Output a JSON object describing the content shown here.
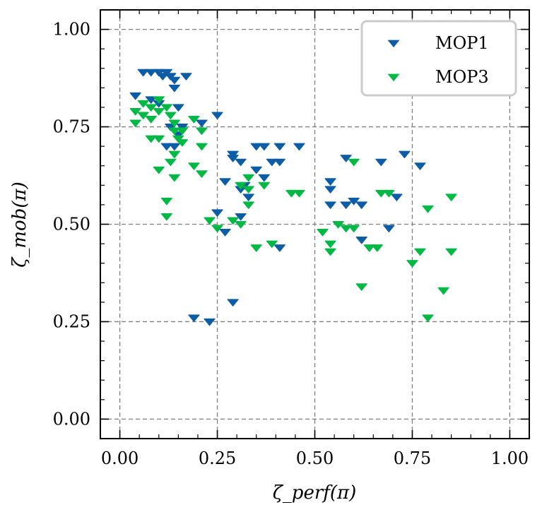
{
  "chart_data": {
    "type": "scatter",
    "title": "",
    "xlabel": "ζ_perf(π)",
    "ylabel": "ζ_mob(π)",
    "xlim": [
      -0.05,
      1.05
    ],
    "ylim": [
      -0.05,
      1.05
    ],
    "xticks": [
      0.0,
      0.25,
      0.5,
      0.75,
      1.0
    ],
    "yticks": [
      0.0,
      0.25,
      0.5,
      0.75,
      1.0
    ],
    "xtick_labels": [
      "0.00",
      "0.25",
      "0.50",
      "0.75",
      "1.00"
    ],
    "ytick_labels": [
      "0.00",
      "0.25",
      "0.50",
      "0.75",
      "1.00"
    ],
    "grid": true,
    "legend_position": "top-right",
    "series": [
      {
        "name": "MOP1",
        "color": "#0c5da5",
        "marker": "triangle-down",
        "points": [
          [
            0.04,
            0.83
          ],
          [
            0.06,
            0.89
          ],
          [
            0.08,
            0.89
          ],
          [
            0.08,
            0.82
          ],
          [
            0.1,
            0.89
          ],
          [
            0.1,
            0.81
          ],
          [
            0.11,
            0.88
          ],
          [
            0.12,
            0.89
          ],
          [
            0.13,
            0.88
          ],
          [
            0.14,
            0.87
          ],
          [
            0.14,
            0.85
          ],
          [
            0.15,
            0.8
          ],
          [
            0.17,
            0.88
          ],
          [
            0.12,
            0.7
          ],
          [
            0.13,
            0.75
          ],
          [
            0.14,
            0.7
          ],
          [
            0.15,
            0.73
          ],
          [
            0.16,
            0.75
          ],
          [
            0.21,
            0.76
          ],
          [
            0.25,
            0.78
          ],
          [
            0.27,
            0.61
          ],
          [
            0.29,
            0.68
          ],
          [
            0.29,
            0.67
          ],
          [
            0.31,
            0.66
          ],
          [
            0.31,
            0.59
          ],
          [
            0.32,
            0.6
          ],
          [
            0.31,
            0.52
          ],
          [
            0.33,
            0.57
          ],
          [
            0.35,
            0.64
          ],
          [
            0.35,
            0.7
          ],
          [
            0.37,
            0.7
          ],
          [
            0.37,
            0.62
          ],
          [
            0.39,
            0.66
          ],
          [
            0.41,
            0.7
          ],
          [
            0.41,
            0.66
          ],
          [
            0.46,
            0.7
          ],
          [
            0.25,
            0.53
          ],
          [
            0.27,
            0.48
          ],
          [
            0.41,
            0.44
          ],
          [
            0.29,
            0.3
          ],
          [
            0.19,
            0.26
          ],
          [
            0.23,
            0.25
          ],
          [
            0.54,
            0.61
          ],
          [
            0.54,
            0.59
          ],
          [
            0.54,
            0.55
          ],
          [
            0.58,
            0.67
          ],
          [
            0.58,
            0.55
          ],
          [
            0.6,
            0.56
          ],
          [
            0.62,
            0.55
          ],
          [
            0.62,
            0.46
          ],
          [
            0.67,
            0.66
          ],
          [
            0.69,
            0.49
          ],
          [
            0.71,
            0.57
          ],
          [
            0.73,
            0.68
          ],
          [
            0.77,
            0.65
          ]
        ]
      },
      {
        "name": "MOP3",
        "color": "#00b945",
        "marker": "triangle-down",
        "points": [
          [
            0.04,
            0.79
          ],
          [
            0.04,
            0.76
          ],
          [
            0.06,
            0.81
          ],
          [
            0.06,
            0.78
          ],
          [
            0.08,
            0.8
          ],
          [
            0.08,
            0.77
          ],
          [
            0.1,
            0.79
          ],
          [
            0.1,
            0.82
          ],
          [
            0.12,
            0.8
          ],
          [
            0.13,
            0.78
          ],
          [
            0.14,
            0.76
          ],
          [
            0.14,
            0.74
          ],
          [
            0.15,
            0.72
          ],
          [
            0.16,
            0.74
          ],
          [
            0.16,
            0.71
          ],
          [
            0.19,
            0.77
          ],
          [
            0.21,
            0.74
          ],
          [
            0.21,
            0.7
          ],
          [
            0.08,
            0.72
          ],
          [
            0.1,
            0.72
          ],
          [
            0.1,
            0.64
          ],
          [
            0.13,
            0.66
          ],
          [
            0.14,
            0.68
          ],
          [
            0.14,
            0.62
          ],
          [
            0.19,
            0.65
          ],
          [
            0.21,
            0.63
          ],
          [
            0.12,
            0.56
          ],
          [
            0.12,
            0.52
          ],
          [
            0.23,
            0.51
          ],
          [
            0.25,
            0.49
          ],
          [
            0.29,
            0.51
          ],
          [
            0.31,
            0.5
          ],
          [
            0.31,
            0.6
          ],
          [
            0.33,
            0.62
          ],
          [
            0.33,
            0.59
          ],
          [
            0.33,
            0.55
          ],
          [
            0.37,
            0.6
          ],
          [
            0.35,
            0.44
          ],
          [
            0.39,
            0.45
          ],
          [
            0.44,
            0.58
          ],
          [
            0.46,
            0.58
          ],
          [
            0.52,
            0.48
          ],
          [
            0.54,
            0.45
          ],
          [
            0.54,
            0.43
          ],
          [
            0.56,
            0.5
          ],
          [
            0.58,
            0.49
          ],
          [
            0.6,
            0.66
          ],
          [
            0.6,
            0.49
          ],
          [
            0.62,
            0.34
          ],
          [
            0.64,
            0.44
          ],
          [
            0.66,
            0.44
          ],
          [
            0.67,
            0.58
          ],
          [
            0.69,
            0.58
          ],
          [
            0.75,
            0.4
          ],
          [
            0.77,
            0.43
          ],
          [
            0.79,
            0.54
          ],
          [
            0.79,
            0.26
          ],
          [
            0.83,
            0.33
          ],
          [
            0.85,
            0.57
          ],
          [
            0.85,
            0.43
          ]
        ]
      }
    ]
  }
}
